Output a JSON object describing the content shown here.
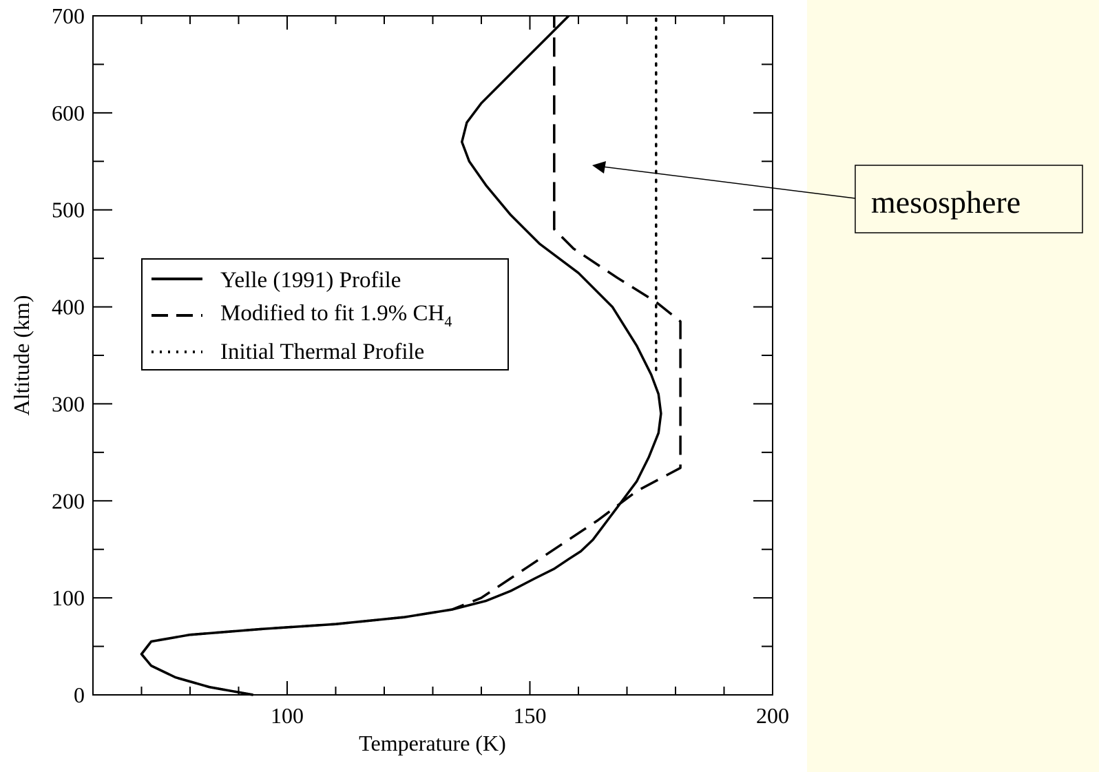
{
  "colors": {
    "right_panel": "#fffde6",
    "ink": "#000000",
    "plot_bg": "#ffffff"
  },
  "annotation": {
    "text": "mesosphere"
  },
  "chart_data": {
    "type": "line",
    "xlabel": "Temperature (K)",
    "ylabel": "Altitude (km)",
    "xlim": [
      60,
      200
    ],
    "ylim": [
      0,
      700
    ],
    "x_ticks": [
      100,
      150,
      200
    ],
    "y_ticks": [
      0,
      100,
      200,
      300,
      400,
      500,
      600,
      700
    ],
    "legend_position": "center-left",
    "grid": false,
    "series": [
      {
        "name": "Yelle (1991) Profile",
        "style": "solid",
        "points": [
          [
            93,
            0
          ],
          [
            84,
            8
          ],
          [
            77,
            18
          ],
          [
            72,
            30
          ],
          [
            70,
            42
          ],
          [
            72,
            55
          ],
          [
            80,
            62
          ],
          [
            95,
            68
          ],
          [
            110,
            73
          ],
          [
            124,
            80
          ],
          [
            134,
            88
          ],
          [
            141,
            97
          ],
          [
            146,
            107
          ],
          [
            151,
            120
          ],
          [
            155,
            130
          ],
          [
            158,
            140
          ],
          [
            160.5,
            148
          ],
          [
            163,
            160
          ],
          [
            166,
            180
          ],
          [
            169,
            200
          ],
          [
            172,
            220
          ],
          [
            174.5,
            245
          ],
          [
            176.5,
            270
          ],
          [
            177,
            290
          ],
          [
            176.5,
            310
          ],
          [
            175,
            330
          ],
          [
            172,
            360
          ],
          [
            167,
            400
          ],
          [
            160,
            435
          ],
          [
            152,
            465
          ],
          [
            146,
            495
          ],
          [
            141,
            525
          ],
          [
            137.5,
            550
          ],
          [
            136,
            570
          ],
          [
            137,
            590
          ],
          [
            140,
            610
          ],
          [
            144,
            630
          ],
          [
            149,
            655
          ],
          [
            154,
            680
          ],
          [
            158,
            700
          ]
        ]
      },
      {
        "name": "Modified to fit 1.9% CH4",
        "style": "dashed",
        "points": [
          [
            93,
            0
          ],
          [
            84,
            8
          ],
          [
            77,
            18
          ],
          [
            72,
            30
          ],
          [
            70,
            42
          ],
          [
            72,
            55
          ],
          [
            80,
            62
          ],
          [
            95,
            68
          ],
          [
            110,
            73
          ],
          [
            124,
            80
          ],
          [
            134,
            88
          ],
          [
            140,
            100
          ],
          [
            146,
            120
          ],
          [
            152,
            140
          ],
          [
            158,
            160
          ],
          [
            164,
            180
          ],
          [
            172,
            210
          ],
          [
            181,
            234
          ],
          [
            181,
            385
          ],
          [
            176,
            405
          ],
          [
            168,
            430
          ],
          [
            159,
            460
          ],
          [
            155,
            480
          ],
          [
            155,
            700
          ]
        ]
      },
      {
        "name": "Initial Thermal Profile",
        "style": "dotted",
        "points": [
          [
            176,
            335
          ],
          [
            176,
            700
          ]
        ]
      }
    ]
  }
}
